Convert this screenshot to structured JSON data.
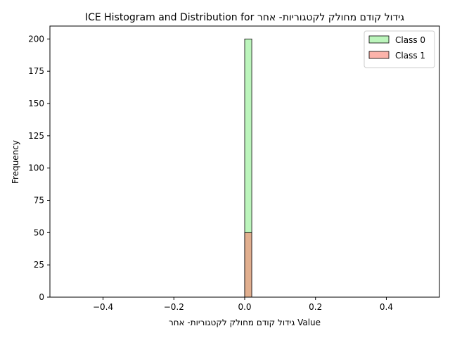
{
  "chart_data": {
    "type": "bar",
    "title": "ICE Histogram and Distribution for גידול קודם מחולק לקטגוריות- אחר",
    "xlabel": "גידול קודם מחולק לקטגוריות- אחר Value",
    "ylabel": "Frequency",
    "xlim": [
      -0.55,
      0.55
    ],
    "ylim": [
      0,
      210
    ],
    "x_ticks": [
      -0.4,
      -0.2,
      0.0,
      0.2,
      0.4
    ],
    "x_tick_labels": [
      "−0.4",
      "−0.2",
      "0.0",
      "0.2",
      "0.4"
    ],
    "y_ticks": [
      0,
      25,
      50,
      75,
      100,
      125,
      150,
      175,
      200
    ],
    "y_tick_labels": [
      "0",
      "25",
      "50",
      "75",
      "100",
      "125",
      "150",
      "175",
      "200"
    ],
    "grid": false,
    "legend_position": "top-right",
    "series": [
      {
        "name": "Class 0",
        "color": "#90ee90",
        "bins": [
          {
            "x0": 0.0,
            "x1": 0.02,
            "count": 200
          }
        ]
      },
      {
        "name": "Class 1",
        "color": "#fa8072",
        "bins": [
          {
            "x0": 0.0,
            "x1": 0.02,
            "count": 50
          }
        ]
      }
    ]
  }
}
